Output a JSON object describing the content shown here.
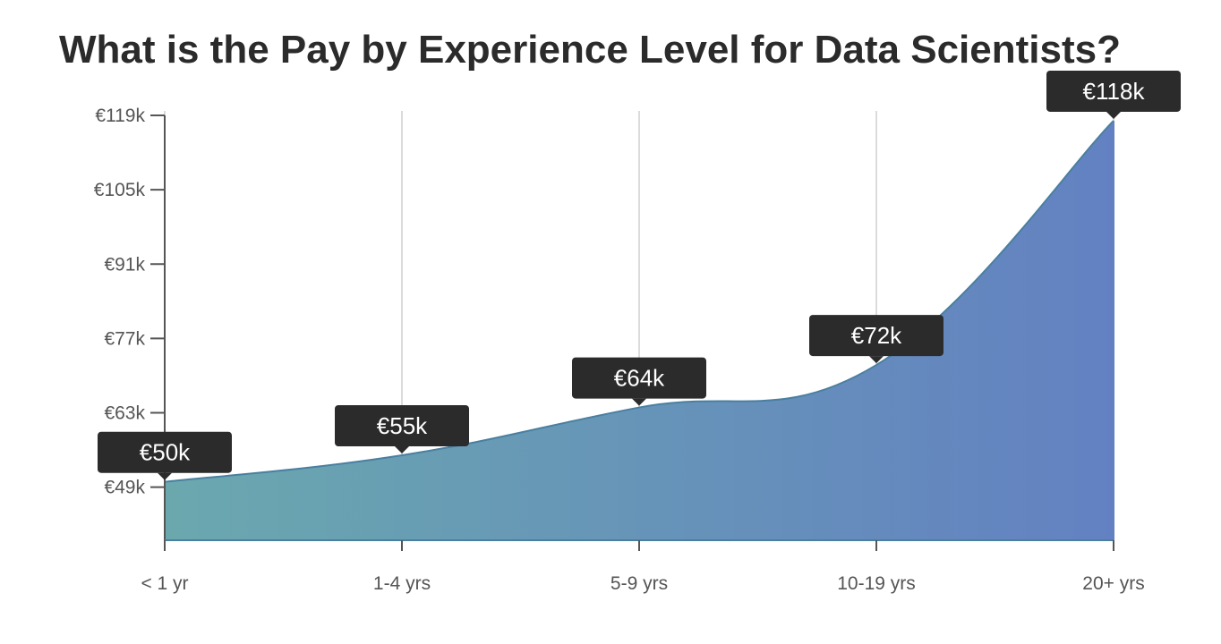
{
  "chart_data": {
    "type": "area",
    "title": "What is the Pay by Experience Level for Data Scientists?",
    "categories": [
      "< 1 yr",
      "1-4 yrs",
      "5-9 yrs",
      "10-19 yrs",
      "20+ yrs"
    ],
    "values": [
      50,
      55,
      64,
      72,
      118
    ],
    "data_labels": [
      "€50k",
      "€55k",
      "€64k",
      "€72k",
      "€118k"
    ],
    "y_ticks": [
      49,
      63,
      77,
      91,
      105,
      119
    ],
    "y_tick_labels": [
      "€49k",
      "€63k",
      "€77k",
      "€91k",
      "€105k",
      "€119k"
    ],
    "ylim": [
      39,
      119
    ],
    "grid": "vertical",
    "colors": {
      "fill_start": "#6aa8ae",
      "fill_end": "#6381c2",
      "line": "#4a7fa0",
      "tooltip": "#2b2b2b"
    }
  }
}
